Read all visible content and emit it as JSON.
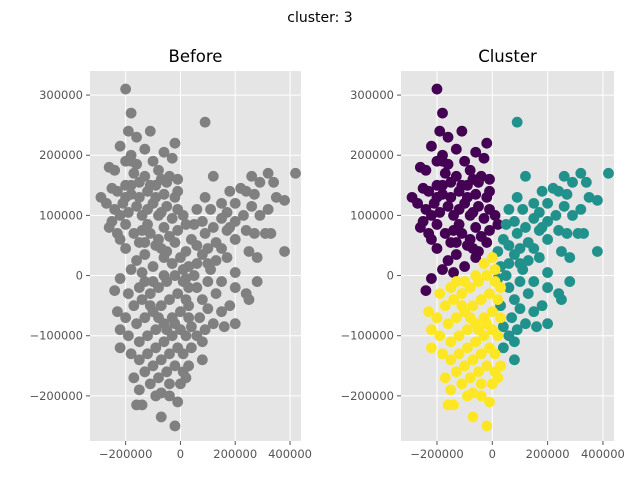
{
  "figure": {
    "suptitle": "cluster: 3"
  },
  "chart_data": [
    {
      "type": "scatter",
      "title": "Before",
      "xlabel": "",
      "ylabel": "",
      "xlim": [
        -330000,
        440000
      ],
      "ylim": [
        -275000,
        340000
      ],
      "xticks": [
        -200000,
        0,
        200000,
        400000
      ],
      "xtick_labels": [
        "−200000",
        "0",
        "200000",
        "400000"
      ],
      "yticks": [
        -200000,
        -100000,
        0,
        100000,
        200000,
        300000
      ],
      "ytick_labels": [
        "−200000",
        "−100000",
        "0",
        "100000",
        "200000",
        "300000"
      ],
      "grid": true,
      "background": "#e5e5e5",
      "point_color": "#808080",
      "points_ref": "points"
    },
    {
      "type": "scatter",
      "title": "Cluster",
      "xlabel": "",
      "ylabel": "",
      "xlim": [
        -330000,
        440000
      ],
      "ylim": [
        -275000,
        340000
      ],
      "xticks": [
        -200000,
        0,
        200000,
        400000
      ],
      "xtick_labels": [
        "−200000",
        "0",
        "200000",
        "400000"
      ],
      "yticks": [
        -200000,
        -100000,
        0,
        100000,
        200000,
        300000
      ],
      "ytick_labels": [
        "−200000",
        "−100000",
        "0",
        "100000",
        "200000",
        "300000"
      ],
      "grid": true,
      "background": "#e5e5e5",
      "cluster_colors": [
        "#440154",
        "#21918c",
        "#fde725"
      ],
      "points_ref": "points"
    }
  ],
  "points": [
    [
      -200000,
      310000,
      0
    ],
    [
      -180000,
      270000,
      0
    ],
    [
      -190000,
      240000,
      0
    ],
    [
      -160000,
      230000,
      0
    ],
    [
      -110000,
      240000,
      0
    ],
    [
      -20000,
      220000,
      0
    ],
    [
      -220000,
      215000,
      0
    ],
    [
      -130000,
      210000,
      0
    ],
    [
      -60000,
      205000,
      0
    ],
    [
      -180000,
      200000,
      0
    ],
    [
      -200000,
      190000,
      0
    ],
    [
      -160000,
      185000,
      0
    ],
    [
      -100000,
      190000,
      0
    ],
    [
      -30000,
      195000,
      0
    ],
    [
      -260000,
      180000,
      0
    ],
    [
      -240000,
      175000,
      0
    ],
    [
      -170000,
      170000,
      0
    ],
    [
      -130000,
      165000,
      0
    ],
    [
      -80000,
      175000,
      0
    ],
    [
      -40000,
      165000,
      0
    ],
    [
      -10000,
      160000,
      0
    ],
    [
      -50000,
      155000,
      0
    ],
    [
      -90000,
      150000,
      0
    ],
    [
      -150000,
      155000,
      0
    ],
    [
      -200000,
      150000,
      0
    ],
    [
      -250000,
      145000,
      0
    ],
    [
      -230000,
      140000,
      0
    ],
    [
      -180000,
      135000,
      0
    ],
    [
      -120000,
      140000,
      0
    ],
    [
      -60000,
      135000,
      0
    ],
    [
      -20000,
      130000,
      0
    ],
    [
      -290000,
      130000,
      0
    ],
    [
      -270000,
      120000,
      0
    ],
    [
      -210000,
      120000,
      0
    ],
    [
      -160000,
      115000,
      0
    ],
    [
      -100000,
      120000,
      0
    ],
    [
      -50000,
      115000,
      0
    ],
    [
      -10000,
      110000,
      0
    ],
    [
      10000,
      100000,
      0
    ],
    [
      -220000,
      100000,
      0
    ],
    [
      -190000,
      105000,
      0
    ],
    [
      -140000,
      100000,
      0
    ],
    [
      -80000,
      100000,
      0
    ],
    [
      -30000,
      95000,
      0
    ],
    [
      -250000,
      90000,
      0
    ],
    [
      -200000,
      85000,
      0
    ],
    [
      -120000,
      85000,
      0
    ],
    [
      -60000,
      80000,
      0
    ],
    [
      -10000,
      75000,
      0
    ],
    [
      -230000,
      70000,
      0
    ],
    [
      -170000,
      70000,
      0
    ],
    [
      -110000,
      70000,
      0
    ],
    [
      -40000,
      65000,
      0
    ],
    [
      -150000,
      55000,
      0
    ],
    [
      -90000,
      50000,
      0
    ],
    [
      -20000,
      55000,
      0
    ],
    [
      -200000,
      45000,
      0
    ],
    [
      -130000,
      35000,
      0
    ],
    [
      -60000,
      30000,
      0
    ],
    [
      -100000,
      15000,
      0
    ],
    [
      -160000,
      25000,
      0
    ],
    [
      -180000,
      10000,
      0
    ],
    [
      -220000,
      -5000,
      0
    ],
    [
      -240000,
      -25000,
      0
    ],
    [
      -140000,
      5000,
      0
    ],
    [
      -70000,
      45000,
      0
    ],
    [
      -180000,
      190000,
      0
    ],
    [
      -110000,
      150000,
      0
    ],
    [
      -150000,
      130000,
      0
    ],
    [
      -70000,
      160000,
      0
    ],
    [
      -220000,
      60000,
      0
    ],
    [
      -140000,
      75000,
      0
    ],
    [
      20000,
      85000,
      0
    ],
    [
      -90000,
      130000,
      0
    ],
    [
      -180000,
      150000,
      0
    ],
    [
      -120000,
      110000,
      0
    ],
    [
      -70000,
      105000,
      0
    ],
    [
      -240000,
      110000,
      0
    ],
    [
      -50000,
      40000,
      0
    ],
    [
      -130000,
      55000,
      0
    ],
    [
      -80000,
      60000,
      0
    ],
    [
      -10000,
      140000,
      0
    ],
    [
      -260000,
      80000,
      0
    ],
    [
      -200000,
      130000,
      0
    ],
    [
      90000,
      255000,
      1
    ],
    [
      320000,
      170000,
      1
    ],
    [
      420000,
      170000,
      1
    ],
    [
      260000,
      165000,
      1
    ],
    [
      120000,
      165000,
      1
    ],
    [
      290000,
      155000,
      1
    ],
    [
      340000,
      155000,
      1
    ],
    [
      220000,
      145000,
      1
    ],
    [
      180000,
      140000,
      1
    ],
    [
      240000,
      140000,
      1
    ],
    [
      270000,
      135000,
      1
    ],
    [
      350000,
      130000,
      1
    ],
    [
      380000,
      125000,
      1
    ],
    [
      90000,
      130000,
      1
    ],
    [
      150000,
      120000,
      1
    ],
    [
      200000,
      120000,
      1
    ],
    [
      260000,
      115000,
      1
    ],
    [
      320000,
      110000,
      1
    ],
    [
      60000,
      110000,
      1
    ],
    [
      110000,
      110000,
      1
    ],
    [
      170000,
      105000,
      1
    ],
    [
      230000,
      100000,
      1
    ],
    [
      290000,
      100000,
      1
    ],
    [
      150000,
      95000,
      1
    ],
    [
      80000,
      90000,
      1
    ],
    [
      200000,
      90000,
      1
    ],
    [
      50000,
      85000,
      1
    ],
    [
      120000,
      80000,
      1
    ],
    [
      240000,
      75000,
      1
    ],
    [
      270000,
      70000,
      1
    ],
    [
      310000,
      70000,
      1
    ],
    [
      330000,
      70000,
      1
    ],
    [
      170000,
      75000,
      1
    ],
    [
      90000,
      70000,
      1
    ],
    [
      40000,
      60000,
      1
    ],
    [
      130000,
      55000,
      1
    ],
    [
      200000,
      60000,
      1
    ],
    [
      60000,
      50000,
      1
    ],
    [
      100000,
      45000,
      1
    ],
    [
      150000,
      45000,
      1
    ],
    [
      250000,
      40000,
      1
    ],
    [
      380000,
      40000,
      1
    ],
    [
      20000,
      40000,
      1
    ],
    [
      80000,
      35000,
      1
    ],
    [
      170000,
      30000,
      1
    ],
    [
      280000,
      30000,
      1
    ],
    [
      130000,
      25000,
      1
    ],
    [
      60000,
      20000,
      1
    ],
    [
      30000,
      15000,
      1
    ],
    [
      110000,
      10000,
      1
    ],
    [
      200000,
      5000,
      1
    ],
    [
      50000,
      0,
      1
    ],
    [
      100000,
      -10000,
      1
    ],
    [
      150000,
      -10000,
      1
    ],
    [
      280000,
      -10000,
      1
    ],
    [
      60000,
      -20000,
      1
    ],
    [
      200000,
      -20000,
      1
    ],
    [
      130000,
      -30000,
      1
    ],
    [
      80000,
      -40000,
      1
    ],
    [
      250000,
      -40000,
      1
    ],
    [
      30000,
      -50000,
      1
    ],
    [
      180000,
      -50000,
      1
    ],
    [
      100000,
      -55000,
      1
    ],
    [
      150000,
      -60000,
      1
    ],
    [
      70000,
      -70000,
      1
    ],
    [
      120000,
      -80000,
      1
    ],
    [
      200000,
      -80000,
      1
    ],
    [
      40000,
      -85000,
      1
    ],
    [
      90000,
      -90000,
      1
    ],
    [
      160000,
      -85000,
      1
    ],
    [
      60000,
      -100000,
      1
    ],
    [
      80000,
      -110000,
      1
    ],
    [
      40000,
      -120000,
      1
    ],
    [
      80000,
      -140000,
      1
    ],
    [
      20000,
      -5000,
      1
    ],
    [
      180000,
      80000,
      1
    ],
    [
      240000,
      -30000,
      1
    ],
    [
      100000,
      20000,
      1
    ],
    [
      -230000,
      -60000,
      2
    ],
    [
      -200000,
      -70000,
      2
    ],
    [
      -170000,
      -50000,
      2
    ],
    [
      -140000,
      -40000,
      2
    ],
    [
      -110000,
      -30000,
      2
    ],
    [
      -80000,
      -20000,
      2
    ],
    [
      -50000,
      -10000,
      2
    ],
    [
      -20000,
      0,
      2
    ],
    [
      10000,
      10000,
      2
    ],
    [
      30000,
      -20000,
      2
    ],
    [
      -220000,
      -90000,
      2
    ],
    [
      -190000,
      -100000,
      2
    ],
    [
      -160000,
      -80000,
      2
    ],
    [
      -130000,
      -70000,
      2
    ],
    [
      -100000,
      -60000,
      2
    ],
    [
      -70000,
      -50000,
      2
    ],
    [
      -40000,
      -40000,
      2
    ],
    [
      -10000,
      -30000,
      2
    ],
    [
      20000,
      -40000,
      2
    ],
    [
      -220000,
      -120000,
      2
    ],
    [
      -180000,
      -130000,
      2
    ],
    [
      -150000,
      -110000,
      2
    ],
    [
      -120000,
      -100000,
      2
    ],
    [
      -90000,
      -90000,
      2
    ],
    [
      -60000,
      -80000,
      2
    ],
    [
      -30000,
      -70000,
      2
    ],
    [
      0,
      -60000,
      2
    ],
    [
      30000,
      -70000,
      2
    ],
    [
      -150000,
      -140000,
      2
    ],
    [
      -120000,
      -130000,
      2
    ],
    [
      -90000,
      -120000,
      2
    ],
    [
      -60000,
      -110000,
      2
    ],
    [
      -30000,
      -100000,
      2
    ],
    [
      0,
      -90000,
      2
    ],
    [
      20000,
      -100000,
      2
    ],
    [
      -130000,
      -160000,
      2
    ],
    [
      -100000,
      -150000,
      2
    ],
    [
      -70000,
      -140000,
      2
    ],
    [
      -40000,
      -130000,
      2
    ],
    [
      -10000,
      -120000,
      2
    ],
    [
      10000,
      -130000,
      2
    ],
    [
      -150000,
      -190000,
      2
    ],
    [
      -110000,
      -180000,
      2
    ],
    [
      -80000,
      -170000,
      2
    ],
    [
      -50000,
      -160000,
      2
    ],
    [
      -20000,
      -150000,
      2
    ],
    [
      10000,
      -160000,
      2
    ],
    [
      30000,
      -150000,
      2
    ],
    [
      -160000,
      -215000,
      2
    ],
    [
      -140000,
      -215000,
      2
    ],
    [
      -90000,
      -200000,
      2
    ],
    [
      -70000,
      -195000,
      2
    ],
    [
      -40000,
      -200000,
      2
    ],
    [
      -10000,
      -210000,
      2
    ],
    [
      -40000,
      -180000,
      2
    ],
    [
      0,
      -180000,
      2
    ],
    [
      20000,
      -170000,
      2
    ],
    [
      -70000,
      -235000,
      2
    ],
    [
      -20000,
      -250000,
      2
    ],
    [
      -190000,
      -30000,
      2
    ],
    [
      -150000,
      -20000,
      2
    ],
    [
      -100000,
      -10000,
      2
    ],
    [
      -60000,
      0,
      2
    ],
    [
      -30000,
      20000,
      2
    ],
    [
      0,
      30000,
      2
    ],
    [
      -110000,
      -50000,
      2
    ],
    [
      -80000,
      -70000,
      2
    ],
    [
      -50000,
      -90000,
      2
    ],
    [
      -20000,
      -80000,
      2
    ],
    [
      -170000,
      -170000,
      2
    ],
    [
      10000,
      -10000,
      2
    ],
    [
      -130000,
      -10000,
      2
    ]
  ]
}
